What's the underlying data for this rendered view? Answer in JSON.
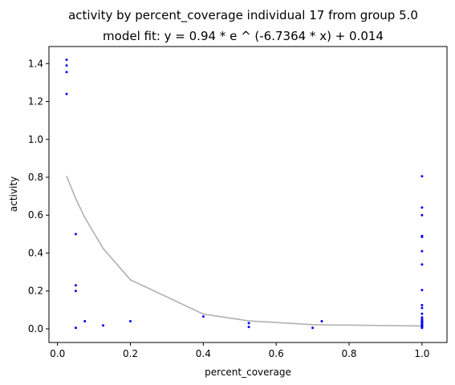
{
  "chart_data": {
    "type": "scatter",
    "title": "activity by percent_coverage individual 17 from group 5.0",
    "subtitle": "model fit: y = 0.94 * e ^ (-6.7364 * x) + 0.014",
    "xlabel": "percent_coverage",
    "ylabel": "activity",
    "xlim": [
      -0.0235,
      1.0685
    ],
    "ylim": [
      -0.072,
      1.49
    ],
    "x_ticks": [
      "0.0",
      "0.2",
      "0.4",
      "0.6",
      "0.8",
      "1.0"
    ],
    "x_tick_values": [
      0,
      0.2,
      0.4,
      0.6,
      0.8,
      1.0
    ],
    "y_ticks": [
      "0.0",
      "0.2",
      "0.4",
      "0.6",
      "0.8",
      "1.0",
      "1.2",
      "1.4"
    ],
    "y_tick_values": [
      0,
      0.2,
      0.4,
      0.6,
      0.8,
      1.0,
      1.2,
      1.4
    ],
    "grid": false,
    "colors": {
      "points": "#0000ff",
      "fit_line": "#b0b0b0",
      "axes": "#000000"
    },
    "series": [
      {
        "kind": "points",
        "x": [
          0.025,
          0.025,
          0.025,
          0.025,
          0.05,
          0.05,
          0.05,
          0.05,
          0.075,
          0.125,
          0.2,
          0.4,
          0.525,
          0.525,
          0.7,
          0.725,
          1.0,
          1.0,
          1.0,
          1.0,
          1.0,
          1.0,
          1.0,
          1.0,
          1.0,
          1.0,
          1.0,
          1.0,
          1.0,
          1.0,
          1.0,
          1.0,
          1.0,
          1.0,
          1.0,
          1.0,
          1.0,
          1.0,
          1.0,
          1.0
        ],
        "y": [
          1.42,
          1.39,
          1.355,
          1.24,
          0.5,
          0.23,
          0.2,
          0.005,
          0.04,
          0.018,
          0.04,
          0.065,
          0.03,
          0.01,
          0.005,
          0.04,
          0.805,
          0.64,
          0.6,
          0.49,
          0.485,
          0.41,
          0.34,
          0.205,
          0.125,
          0.11,
          0.08,
          0.06,
          0.05,
          0.045,
          0.04,
          0.035,
          0.03,
          0.025,
          0.02,
          0.018,
          0.015,
          0.012,
          0.01,
          0.005
        ]
      },
      {
        "kind": "fit",
        "x": [
          0.025,
          0.05,
          0.075,
          0.125,
          0.2,
          0.4,
          0.525,
          0.7,
          0.725,
          1.0
        ],
        "y": [
          0.806,
          0.687,
          0.587,
          0.424,
          0.259,
          0.078,
          0.042,
          0.022,
          0.021,
          0.015
        ]
      }
    ]
  }
}
